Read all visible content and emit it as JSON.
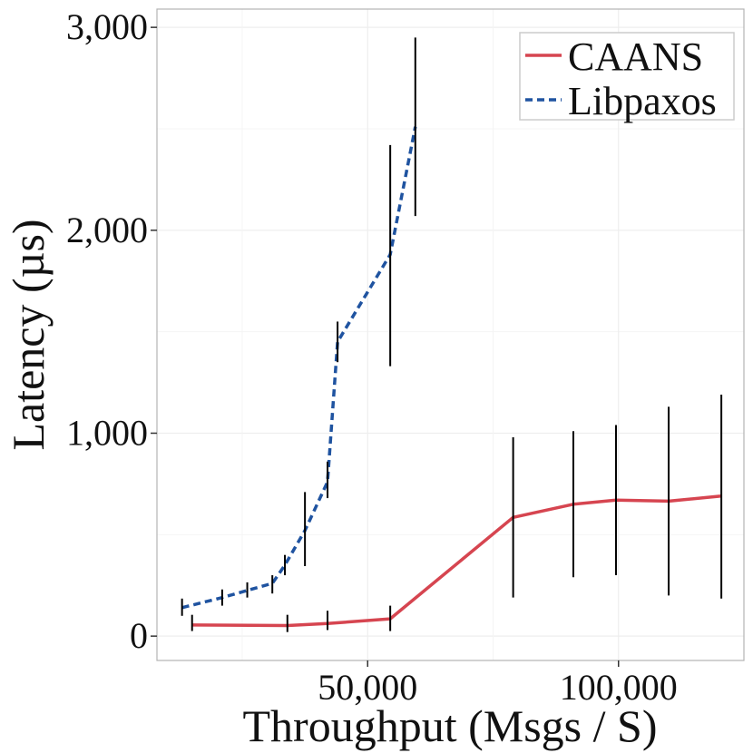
{
  "chart_data": {
    "type": "line",
    "title": "",
    "xlabel": "Throughput (Msgs / S)",
    "ylabel": "Latency (µs)",
    "xlim": [
      8000,
      125000
    ],
    "ylim": [
      -120,
      3090
    ],
    "x_ticks": [
      50000,
      100000
    ],
    "x_tick_labels": [
      "50,000",
      "100,000"
    ],
    "x_minor_ticks": [
      25000,
      75000,
      125000
    ],
    "y_ticks": [
      0,
      1000,
      2000,
      3000
    ],
    "y_tick_labels": [
      "0",
      "1,000",
      "2,000",
      "3,000"
    ],
    "y_minor_ticks": [
      500,
      1500,
      2500
    ],
    "grid": true,
    "legend_position": "top-right",
    "series": [
      {
        "name": "CAANS",
        "color": "#d64550",
        "dash": "solid",
        "points": [
          {
            "x": 15000,
            "y": 55,
            "low": 25,
            "high": 105
          },
          {
            "x": 34000,
            "y": 52,
            "low": 20,
            "high": 105
          },
          {
            "x": 42000,
            "y": 62,
            "low": 30,
            "high": 125
          },
          {
            "x": 54500,
            "y": 85,
            "low": 25,
            "high": 150
          },
          {
            "x": 79000,
            "y": 585,
            "low": 190,
            "high": 980
          },
          {
            "x": 91000,
            "y": 650,
            "low": 290,
            "high": 1010
          },
          {
            "x": 99500,
            "y": 670,
            "low": 300,
            "high": 1040
          },
          {
            "x": 110000,
            "y": 665,
            "low": 200,
            "high": 1130
          },
          {
            "x": 120500,
            "y": 690,
            "low": 185,
            "high": 1190
          }
        ]
      },
      {
        "name": "Libpaxos",
        "color": "#1f53a0",
        "dash": "dashed",
        "points": [
          {
            "x": 13000,
            "y": 140,
            "low": 100,
            "high": 185
          },
          {
            "x": 21000,
            "y": 190,
            "low": 150,
            "high": 230
          },
          {
            "x": 26000,
            "y": 225,
            "low": 190,
            "high": 265
          },
          {
            "x": 31000,
            "y": 260,
            "low": 210,
            "high": 300
          },
          {
            "x": 33500,
            "y": 350,
            "low": 300,
            "high": 400
          },
          {
            "x": 37500,
            "y": 520,
            "low": 345,
            "high": 710
          },
          {
            "x": 42000,
            "y": 760,
            "low": 680,
            "high": 860
          },
          {
            "x": 44000,
            "y": 1450,
            "low": 1350,
            "high": 1550
          },
          {
            "x": 54500,
            "y": 1880,
            "low": 1330,
            "high": 2420
          },
          {
            "x": 59500,
            "y": 2510,
            "low": 2070,
            "high": 2950
          }
        ]
      }
    ]
  }
}
